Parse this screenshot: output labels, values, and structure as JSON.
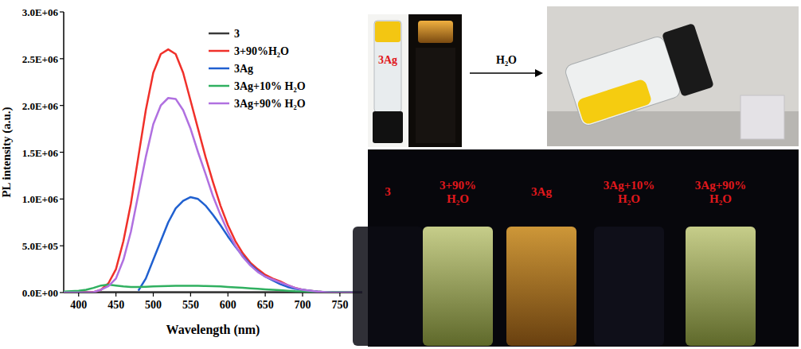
{
  "chart_data": {
    "type": "line",
    "x_label": "Wavelength (nm)",
    "y_label": "PL intensity (a.u.)",
    "x": [
      380,
      390,
      400,
      410,
      420,
      430,
      440,
      450,
      460,
      470,
      480,
      490,
      500,
      510,
      520,
      530,
      540,
      550,
      560,
      570,
      580,
      590,
      600,
      610,
      620,
      630,
      640,
      650,
      660,
      670,
      680,
      690,
      700,
      710,
      720,
      730,
      740,
      750,
      760,
      770,
      780
    ],
    "xlim": [
      380,
      780
    ],
    "xticks": [
      400,
      450,
      500,
      550,
      600,
      650,
      700,
      750
    ],
    "ylim": [
      0,
      3000000
    ],
    "yticks": [
      {
        "value": 0,
        "label": "0.0E+00"
      },
      {
        "value": 500000,
        "label": "5.0E+05"
      },
      {
        "value": 1000000,
        "label": "1.0E+06"
      },
      {
        "value": 1500000,
        "label": "1.5E+06"
      },
      {
        "value": 2000000,
        "label": "2.0E+06"
      },
      {
        "value": 2500000,
        "label": "2.5E+06"
      },
      {
        "value": 3000000,
        "label": "3.0E+06"
      }
    ],
    "grid": false,
    "legend": "upper right",
    "series": [
      {
        "name": "3",
        "color": "#3a3a3a",
        "values": [
          5000,
          5000,
          5000,
          5000,
          5000,
          5000,
          5000,
          5000,
          5000,
          5000,
          5000,
          5000,
          5000,
          5000,
          5000,
          5000,
          5000,
          5000,
          5000,
          5000,
          5000,
          5000,
          5000,
          5000,
          5000,
          5000,
          5000,
          5000,
          5000,
          5000,
          5000,
          5000,
          5000,
          5000,
          5000,
          5000,
          5000,
          5000,
          5000,
          5000,
          5000
        ]
      },
      {
        "name": "3+90%H₂O",
        "color": "#f0302a",
        "values": [
          0,
          0,
          0,
          0,
          5000,
          30000,
          100000,
          250000,
          550000,
          950000,
          1450000,
          1950000,
          2350000,
          2550000,
          2600000,
          2550000,
          2350000,
          2050000,
          1750000,
          1450000,
          1180000,
          930000,
          720000,
          550000,
          420000,
          320000,
          250000,
          190000,
          150000,
          120000,
          80000,
          50000,
          30000,
          20000,
          10000,
          5000,
          0,
          0,
          0,
          0,
          0
        ]
      },
      {
        "name": "3Ag",
        "color": "#2060d0",
        "values": [
          null,
          null,
          null,
          null,
          null,
          null,
          null,
          null,
          null,
          null,
          20000,
          150000,
          350000,
          550000,
          750000,
          900000,
          980000,
          1020000,
          1000000,
          930000,
          830000,
          720000,
          600000,
          490000,
          390000,
          300000,
          230000,
          170000,
          130000,
          90000,
          60000,
          40000,
          30000,
          20000,
          10000,
          5000,
          0,
          0,
          0,
          0,
          0
        ]
      },
      {
        "name": "3Ag+10% H₂O",
        "color": "#30b060",
        "values": [
          10000,
          15000,
          20000,
          30000,
          50000,
          75000,
          85000,
          75000,
          65000,
          60000,
          60000,
          62000,
          65000,
          68000,
          70000,
          72000,
          72000,
          73000,
          72000,
          70000,
          68000,
          65000,
          60000,
          55000,
          50000,
          45000,
          40000,
          35000,
          30000,
          25000,
          20000,
          15000,
          12000,
          10000,
          8000,
          6000,
          5000,
          4000,
          3000,
          2000,
          2000
        ]
      },
      {
        "name": "3Ag+90% H₂O",
        "color": "#b070e0",
        "values": [
          0,
          0,
          0,
          0,
          5000,
          30000,
          70000,
          150000,
          350000,
          650000,
          1050000,
          1450000,
          1800000,
          2000000,
          2080000,
          2070000,
          1950000,
          1750000,
          1500000,
          1270000,
          1030000,
          830000,
          650000,
          500000,
          380000,
          290000,
          220000,
          170000,
          140000,
          110000,
          80000,
          50000,
          30000,
          20000,
          10000,
          5000,
          0,
          0,
          0,
          0,
          0
        ]
      }
    ]
  },
  "photos": {
    "top_label": "3Ag",
    "arrow_label": "H₂O",
    "vials": [
      "3",
      "3+90% H₂O",
      "3Ag",
      "3Ag+10% H₂O",
      "3Ag+90% H₂O"
    ]
  }
}
